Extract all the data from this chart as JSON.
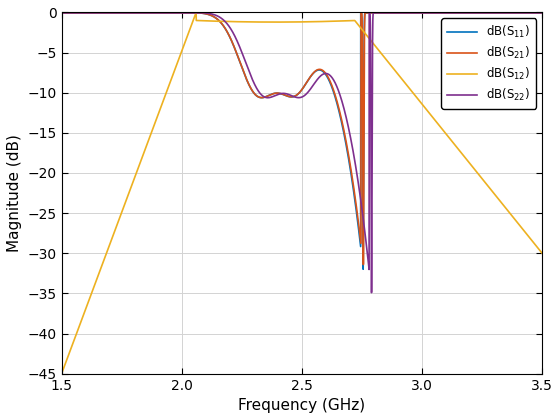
{
  "title": "",
  "xlabel": "Frequency (GHz)",
  "ylabel": "Magnitude (dB)",
  "xlim": [
    1.5,
    3.5
  ],
  "ylim": [
    -45,
    0
  ],
  "yticks": [
    0,
    -5,
    -10,
    -15,
    -20,
    -25,
    -30,
    -35,
    -40,
    -45
  ],
  "xticks": [
    1.5,
    2.0,
    2.5,
    3.0,
    3.5
  ],
  "colors": {
    "S11": "#0072BD",
    "S21": "#D95319",
    "S12": "#EDB120",
    "S22": "#7E2F8E"
  },
  "background_color": "#FFFFFF",
  "grid_color": "#D3D3D3",
  "linewidth": 1.2
}
